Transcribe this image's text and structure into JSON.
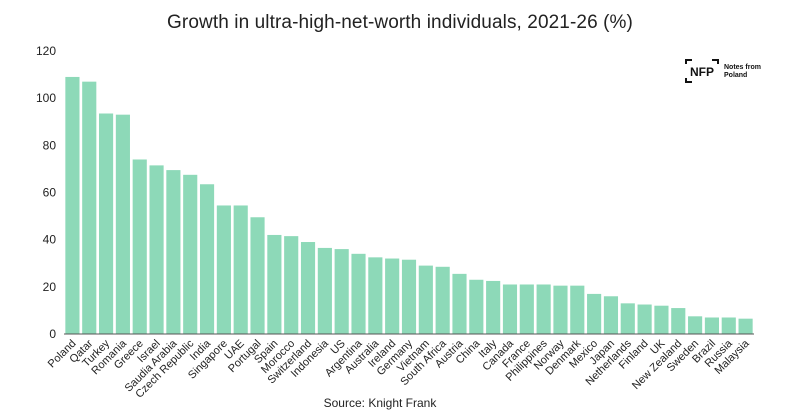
{
  "logo": {
    "mark": "NFP",
    "text": "Notes from Poland"
  },
  "chart_data": {
    "type": "bar",
    "title": "Growth in ultra-high-net-worth individuals, 2021-26 (%)",
    "xlabel": "",
    "ylabel": "",
    "ylim": [
      0,
      120
    ],
    "yticks": [
      0,
      20,
      40,
      60,
      80,
      100,
      120
    ],
    "grid": false,
    "bar_color": "#8dd9b8",
    "source": "Source: Knight Frank",
    "categories": [
      "Poland",
      "Qatar",
      "Turkey",
      "Romania",
      "Greece",
      "Israel",
      "Saudia Arabia",
      "Czech Republic",
      "India",
      "Singapore",
      "UAE",
      "Portugal",
      "Spain",
      "Morocco",
      "Switzerland",
      "Indonesia",
      "US",
      "Argentina",
      "Australia",
      "Ireland",
      "Germany",
      "Vietnam",
      "South Africa",
      "Austria",
      "China",
      "Italy",
      "Canada",
      "France",
      "Philippines",
      "Norway",
      "Denmark",
      "Mexico",
      "Japan",
      "Netherlands",
      "Finland",
      "UK",
      "New Zealand",
      "Sweden",
      "Brazil",
      "Russia",
      "Malaysia"
    ],
    "values": [
      109,
      107,
      93.5,
      93,
      74,
      71.5,
      69.5,
      67.5,
      63.5,
      54.5,
      54.5,
      49.5,
      42,
      41.5,
      39,
      36.5,
      36,
      34,
      32.5,
      32,
      31.5,
      29,
      28.5,
      25.5,
      23,
      22.5,
      21,
      21,
      21,
      20.5,
      20.5,
      17,
      16,
      13,
      12.5,
      12,
      11,
      7.5,
      7,
      7,
      6.5
    ]
  }
}
